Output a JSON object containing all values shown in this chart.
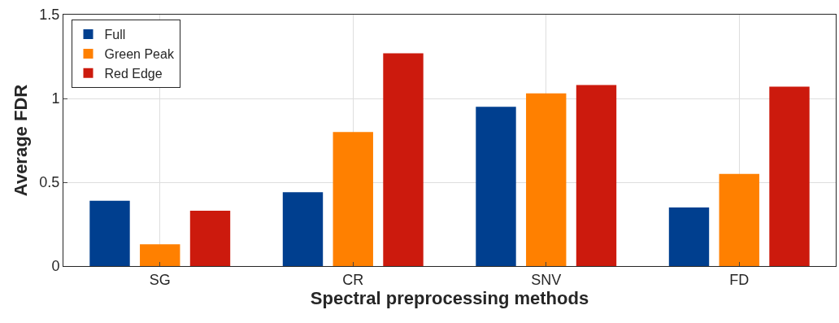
{
  "chart_data": {
    "type": "bar",
    "xlabel": "Spectral preprocessing methods",
    "ylabel": "Average FDR",
    "categories": [
      "SG",
      "CR",
      "SNV",
      "FD"
    ],
    "series": [
      {
        "name": "Full",
        "color": "#003f8f",
        "values": [
          0.39,
          0.44,
          0.95,
          0.35
        ]
      },
      {
        "name": "Green Peak",
        "color": "#ff8000",
        "values": [
          0.13,
          0.8,
          1.03,
          0.55
        ]
      },
      {
        "name": "Red Edge",
        "color": "#cc1a0d",
        "values": [
          0.33,
          1.27,
          1.08,
          1.07
        ]
      }
    ],
    "ylim": [
      0,
      1.5
    ],
    "yticks": [
      0,
      0.5,
      1,
      1.5
    ],
    "grid": true,
    "legend": "top left"
  }
}
